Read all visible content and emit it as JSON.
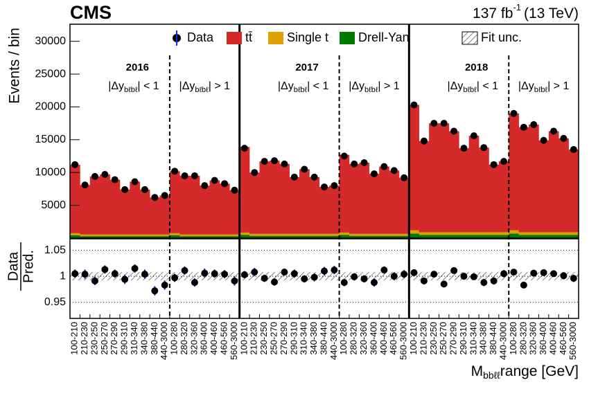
{
  "chart_data": {
    "type": "bar",
    "stacked": true,
    "title": "CMS",
    "lumi": "137 fb",
    "lumi_exponent": "-1",
    "energy": "(13 TeV)",
    "ylabel": "Events / bin",
    "xlabel": {
      "main": "M",
      "sub": "bbℓℓ",
      "rest": "range [GeV]"
    },
    "years": [
      "2016",
      "2017",
      "2018"
    ],
    "region_labels": [
      {
        "main": "|Δy",
        "sub": "bℓbℓ",
        "rest": "| < 1"
      },
      {
        "main": "|Δy",
        "sub": "bℓbℓ",
        "rest": "| > 1"
      },
      {
        "main": "|Δy",
        "sub": "bℓbℓ",
        "rest": "| < 1"
      },
      {
        "main": "|Δy",
        "sub": "bℓbℓ",
        "rest": "| > 1"
      },
      {
        "main": "|Δy",
        "sub": "bℓbℓ",
        "rest": "| < 1"
      },
      {
        "main": "|Δy",
        "sub": "bℓbℓ",
        "rest": "| > 1"
      }
    ],
    "categories": [
      "100-210",
      "210-230",
      "230-250",
      "250-270",
      "270-290",
      "290-310",
      "310-340",
      "340-380",
      "380-440",
      "440-3000",
      "100-280",
      "280-320",
      "320-360",
      "360-400",
      "400-460",
      "460-560",
      "560-3000",
      "100-210",
      "210-230",
      "230-250",
      "250-270",
      "270-290",
      "290-310",
      "310-340",
      "340-380",
      "380-440",
      "440-3000",
      "100-280",
      "280-320",
      "320-360",
      "360-400",
      "400-460",
      "460-560",
      "560-3000",
      "100-210",
      "210-230",
      "230-250",
      "250-270",
      "270-290",
      "290-310",
      "310-340",
      "340-380",
      "380-440",
      "440-3000",
      "100-280",
      "280-320",
      "320-360",
      "360-400",
      "400-460",
      "460-560",
      "560-3000"
    ],
    "data": {
      "name": "Data",
      "color": "#000000",
      "values": [
        11200,
        8100,
        9400,
        9700,
        8900,
        7400,
        8600,
        7400,
        6200,
        6500,
        10200,
        9500,
        9500,
        8000,
        8800,
        8300,
        7300,
        13700,
        10000,
        11700,
        11800,
        11300,
        9300,
        10500,
        9300,
        7800,
        8000,
        12500,
        11300,
        11500,
        9800,
        10900,
        10300,
        9200,
        20300,
        14800,
        17500,
        17500,
        16300,
        13700,
        15600,
        13800,
        11200,
        11700,
        19000,
        16900,
        17300,
        14900,
        16300,
        15200,
        13500
      ]
    },
    "series": [
      {
        "name": "tt̄",
        "color": "#d42a2a",
        "values": [
          10450,
          7550,
          8850,
          9150,
          8350,
          6850,
          8050,
          6850,
          5650,
          5950,
          9450,
          8950,
          8950,
          7450,
          8250,
          7750,
          6750,
          13050,
          9350,
          11050,
          11150,
          10650,
          8650,
          9850,
          8650,
          7150,
          7350,
          11850,
          10650,
          10850,
          9150,
          10250,
          9650,
          8550,
          19100,
          13900,
          16600,
          16600,
          15400,
          12800,
          14700,
          12900,
          10300,
          10800,
          17800,
          16000,
          16400,
          14000,
          15400,
          14300,
          12600
        ]
      },
      {
        "name": "Single t",
        "color": "#dca000",
        "values": [
          300,
          250,
          250,
          250,
          250,
          250,
          250,
          250,
          250,
          250,
          300,
          250,
          250,
          250,
          250,
          250,
          250,
          350,
          300,
          300,
          300,
          300,
          300,
          300,
          300,
          300,
          300,
          350,
          300,
          300,
          300,
          300,
          300,
          300,
          500,
          400,
          400,
          400,
          400,
          400,
          400,
          400,
          400,
          400,
          500,
          400,
          400,
          400,
          400,
          400,
          400
        ]
      },
      {
        "name": "Drell-Yan",
        "color": "#007a00",
        "values": [
          450,
          300,
          300,
          300,
          300,
          300,
          300,
          300,
          300,
          300,
          450,
          300,
          300,
          300,
          300,
          300,
          300,
          500,
          350,
          350,
          350,
          350,
          350,
          350,
          350,
          350,
          350,
          500,
          350,
          350,
          350,
          350,
          350,
          350,
          700,
          500,
          500,
          500,
          500,
          500,
          500,
          500,
          500,
          500,
          700,
          500,
          500,
          500,
          500,
          500,
          500
        ]
      }
    ],
    "fit_unc_name": "Fit unc.",
    "ylim": [
      0,
      32600
    ],
    "yticks": [
      5000,
      10000,
      15000,
      20000,
      25000,
      30000
    ],
    "ratio": {
      "ylabel_top": "Data",
      "ylabel_bottom": "Pred.",
      "ylim": [
        0.919,
        1.072
      ],
      "yticks": [
        0.95,
        1,
        1.05
      ],
      "band_halfwidth": 0.008,
      "values": [
        1.005,
        1.004,
        0.991,
        1.013,
        1.005,
        0.994,
        1.015,
        1.004,
        0.972,
        0.983,
        0.997,
        1.011,
        0.988,
        1.006,
        1.005,
        1.004,
        0.991,
        1.003,
        1.008,
        0.996,
        0.989,
        1.008,
        1.005,
        0.995,
        0.998,
        1.01,
        1.012,
        0.988,
        0.999,
        0.995,
        0.988,
        1.012,
        1.0,
        1.004,
        1.007,
        0.991,
        1.004,
        0.985,
        1.011,
        1.0,
        0.999,
        0.988,
        0.991,
        1.005,
        1.008,
        0.983,
        1.006,
        1.007,
        1.005,
        1.001,
        0.996
      ],
      "errors": [
        0.008,
        0.009,
        0.008,
        0.008,
        0.008,
        0.009,
        0.008,
        0.009,
        0.009,
        0.009,
        0.008,
        0.008,
        0.008,
        0.009,
        0.008,
        0.008,
        0.009,
        0.007,
        0.008,
        0.007,
        0.007,
        0.007,
        0.008,
        0.007,
        0.008,
        0.008,
        0.008,
        0.007,
        0.007,
        0.007,
        0.008,
        0.007,
        0.008,
        0.008,
        0.006,
        0.006,
        0.006,
        0.006,
        0.006,
        0.007,
        0.006,
        0.007,
        0.007,
        0.007,
        0.006,
        0.006,
        0.006,
        0.006,
        0.006,
        0.007,
        0.007
      ]
    }
  }
}
